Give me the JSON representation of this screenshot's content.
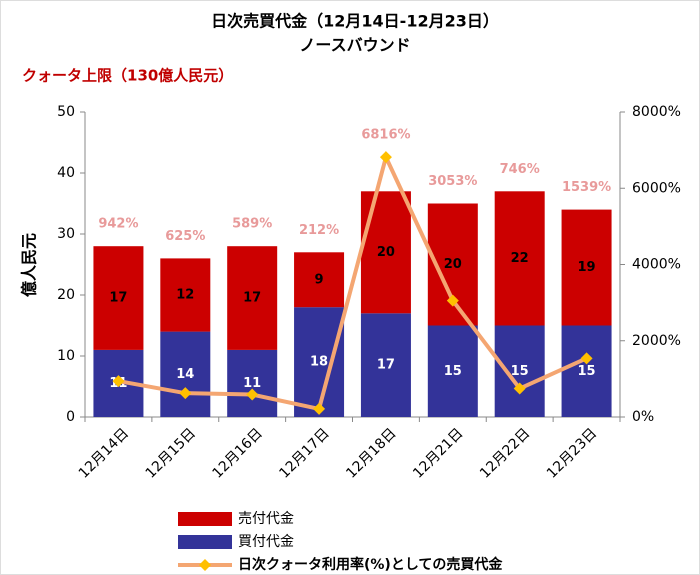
{
  "chart_data": {
    "type": "bar",
    "stacked": true,
    "title": "日次売買代金（12月14日-12月23日）",
    "subtitle": "ノースバウンド",
    "annotation": "クォータ上限（130億人民元）",
    "y_label": "億人民元",
    "categories": [
      "12月14日",
      "12月15日",
      "12月16日",
      "12月17日",
      "12月18日",
      "12月21日",
      "12月22日",
      "12月23日"
    ],
    "series": [
      {
        "name": "買付代金",
        "color": "#333399",
        "label_color": "#ffffff",
        "values": [
          11,
          14,
          11,
          18,
          17,
          15,
          15,
          15
        ]
      },
      {
        "name": "売付代金",
        "color": "#cc0000",
        "label_color": "#000000",
        "values": [
          17,
          12,
          17,
          9,
          20,
          20,
          22,
          19
        ]
      },
      {
        "name": "日次クォータ利用率(%)としての売買代金",
        "type": "line",
        "axis": "y2",
        "color": "#f4a672",
        "marker_color": "#ffc000",
        "values": [
          942,
          625,
          589,
          212,
          6816,
          3053,
          746,
          1539
        ],
        "value_labels": [
          "942%",
          "625%",
          "589%",
          "212%",
          "6816%",
          "3053%",
          "746%",
          "1539%"
        ]
      }
    ],
    "ylim": [
      0,
      50
    ],
    "yticks": [
      0,
      10,
      20,
      30,
      40,
      50
    ],
    "y2lim": [
      0,
      8000
    ],
    "y2ticks": [
      {
        "value": 0,
        "label": "0%"
      },
      {
        "value": 2000,
        "label": "2000%"
      },
      {
        "value": 4000,
        "label": "4000%"
      },
      {
        "value": 6000,
        "label": "6000%"
      },
      {
        "value": 8000,
        "label": "8000%"
      }
    ],
    "grid": false
  }
}
